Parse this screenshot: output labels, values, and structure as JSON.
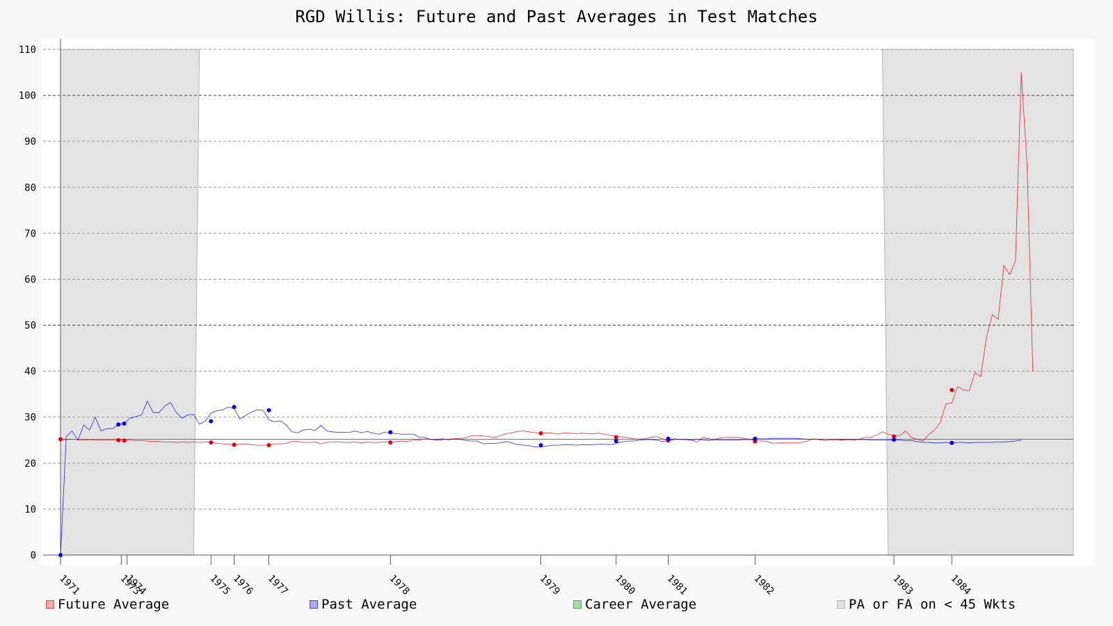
{
  "chart_data": {
    "type": "line",
    "title": "RGD Willis: Future and Past Averages in Test Matches",
    "ylim": [
      0,
      110
    ],
    "yticks": [
      0,
      10,
      20,
      30,
      40,
      50,
      60,
      70,
      80,
      90,
      100,
      110
    ],
    "ytick_labels": [
      "0",
      "10",
      "20",
      "30",
      "40",
      "50",
      "60",
      "70",
      "80",
      "90",
      "100",
      "110"
    ],
    "x_range": [
      1,
      176
    ],
    "year_ticks": [
      {
        "label": "1971",
        "x": 1
      },
      {
        "label": "1973",
        "x": 11.5
      },
      {
        "label": "1974",
        "x": 12.5
      },
      {
        "label": "1975",
        "x": 27
      },
      {
        "label": "1976",
        "x": 31
      },
      {
        "label": "1977",
        "x": 37
      },
      {
        "label": "1978",
        "x": 58
      },
      {
        "label": "1979",
        "x": 84
      },
      {
        "label": "1980",
        "x": 97
      },
      {
        "label": "1981",
        "x": 106
      },
      {
        "label": "1982",
        "x": 121
      },
      {
        "label": "1983",
        "x": 145
      },
      {
        "label": "1984",
        "x": 155
      }
    ],
    "career_average": 25.2,
    "low_wicket_regions": [
      {
        "from_top": 1,
        "to_top": 25,
        "from_bottom": 1,
        "to_bottom": 24
      },
      {
        "from_top": 143,
        "to_top": 176,
        "from_bottom": 144,
        "to_bottom": 176
      }
    ],
    "series": [
      {
        "name": "Future Average",
        "color": "#e8000b",
        "values": [
          25.2,
          25.1,
          25.2,
          25.1,
          25.0,
          25.1,
          25.0,
          25.0,
          25.0,
          25.0,
          25.0,
          25.0,
          25.0,
          24.9,
          24.9,
          24.8,
          24.7,
          24.7,
          24.6,
          24.6,
          24.5,
          24.6,
          24.5,
          24.6,
          24.5,
          24.6,
          24.6,
          24.3,
          24.2,
          24.1,
          24.0,
          24.1,
          24.2,
          24.0,
          23.9,
          23.9,
          23.9,
          24.2,
          24.2,
          24.3,
          24.7,
          24.7,
          24.5,
          24.5,
          24.6,
          24.2,
          24.5,
          24.6,
          24.6,
          24.5,
          24.5,
          24.6,
          24.4,
          24.6,
          24.5,
          24.5,
          24.6,
          24.5,
          24.7,
          24.8,
          24.7,
          25.0,
          25.0,
          25.3,
          25.2,
          25.0,
          25.1,
          25.2,
          25.3,
          25.4,
          25.5,
          26.0,
          26.0,
          25.9,
          25.8,
          25.5,
          26.0,
          26.4,
          26.6,
          26.9,
          27.0,
          26.8,
          26.6,
          26.5,
          26.6,
          26.5,
          26.3,
          26.6,
          26.5,
          26.4,
          26.5,
          26.4,
          26.4,
          26.5,
          26.3,
          26.0,
          25.9,
          25.7,
          25.5,
          25.3,
          25.2,
          25.3,
          25.6,
          25.8,
          25.3,
          24.9,
          25.1,
          25.2,
          25.2,
          25.0,
          24.6,
          25.6,
          25.3,
          25.1,
          25.5,
          25.6,
          25.6,
          25.6,
          25.4,
          25.2,
          24.9,
          24.8,
          24.8,
          24.3,
          24.4,
          24.4,
          24.4,
          24.4,
          24.5,
          24.8,
          25.3,
          25.1,
          24.9,
          25.0,
          25.0,
          25.0,
          25.1,
          25.0,
          25.2,
          25.6,
          25.6,
          26.1,
          26.8,
          26.3,
          26.0,
          26.0,
          27.0,
          25.6,
          25.2,
          24.8,
          26.2,
          27.2,
          28.8,
          32.9,
          33.1,
          36.6,
          35.9,
          35.7,
          39.7,
          38.8,
          47.5,
          52.3,
          51.3,
          63.0,
          61.0,
          64.0,
          105.0,
          85.0,
          40.0
        ],
        "markers": [
          [
            1,
            25.2
          ],
          [
            11,
            25.0
          ],
          [
            12,
            24.9
          ],
          [
            27,
            24.5
          ],
          [
            31,
            24.0
          ],
          [
            37,
            23.9
          ],
          [
            58,
            24.5
          ],
          [
            84,
            26.5
          ],
          [
            97,
            25.6
          ],
          [
            106,
            24.9
          ],
          [
            121,
            24.7
          ],
          [
            145,
            25.8
          ],
          [
            155,
            35.9
          ]
        ]
      },
      {
        "name": "Past Average",
        "color": "#0000ee",
        "values": [
          0,
          25.8,
          27.0,
          25.0,
          28.3,
          27.2,
          30.0,
          27.0,
          27.5,
          27.5,
          28.4,
          28.6,
          29.8,
          30.1,
          30.5,
          33.5,
          31.0,
          31.0,
          32.4,
          33.2,
          31.0,
          29.8,
          30.5,
          30.6,
          28.5,
          29.1,
          30.9,
          31.4,
          31.6,
          32.2,
          31.9,
          29.6,
          30.4,
          31.1,
          31.6,
          31.5,
          29.4,
          29.0,
          29.2,
          28.3,
          26.8,
          26.6,
          27.2,
          27.4,
          27.1,
          28.2,
          27.0,
          26.8,
          26.7,
          26.7,
          26.7,
          27.0,
          26.6,
          26.9,
          26.5,
          26.3,
          26.7,
          26.6,
          26.4,
          26.3,
          26.3,
          26.3,
          25.6,
          25.6,
          25.1,
          25.1,
          25.3,
          25.1,
          25.2,
          25.2,
          24.9,
          24.8,
          24.8,
          24.2,
          24.3,
          24.3,
          24.4,
          24.7,
          24.4,
          24.0,
          23.9,
          23.8,
          23.5,
          23.5,
          23.7,
          23.9,
          23.9,
          24.0,
          24.0,
          23.9,
          24.0,
          24.0,
          24.0,
          24.1,
          24.1,
          24.0,
          24.3,
          24.6,
          24.8,
          24.8,
          25.0,
          25.1,
          25.1,
          25.0,
          24.7,
          24.9,
          25.3,
          25.1,
          25.1,
          25.0,
          25.2,
          25.0,
          24.9,
          25.1,
          25.0,
          25.0,
          25.0,
          25.0,
          25.1,
          25.1,
          25.3,
          25.3,
          25.3,
          25.4,
          25.4,
          25.4,
          25.4,
          25.4,
          25.3,
          25.2,
          25.2,
          25.2,
          25.2,
          25.2,
          25.2,
          25.1,
          25.2,
          25.1,
          25.1,
          25.1,
          25.0,
          25.0,
          25.0,
          25.0,
          25.1,
          25.0,
          24.9,
          24.9,
          24.7,
          24.5,
          24.5,
          24.4,
          24.4,
          24.5,
          24.4,
          24.5,
          24.5,
          24.4,
          24.5,
          24.5,
          24.5,
          24.5,
          24.6,
          24.6,
          24.7,
          24.8,
          25.0
        ],
        "markers": [
          [
            1,
            0
          ],
          [
            11,
            28.4
          ],
          [
            12,
            28.6
          ],
          [
            27,
            29.1
          ],
          [
            31,
            32.2
          ],
          [
            37,
            31.5
          ],
          [
            58,
            26.7
          ],
          [
            84,
            23.9
          ],
          [
            97,
            24.8
          ],
          [
            106,
            25.3
          ],
          [
            121,
            25.3
          ],
          [
            145,
            25.1
          ],
          [
            155,
            24.4
          ]
        ]
      },
      {
        "name": "Career Average",
        "color": "#2ca02c"
      },
      {
        "name": "PA or FA on < 45 Wkts",
        "color": "#cccccc"
      }
    ],
    "legend_position": "bottom",
    "grid": true
  }
}
